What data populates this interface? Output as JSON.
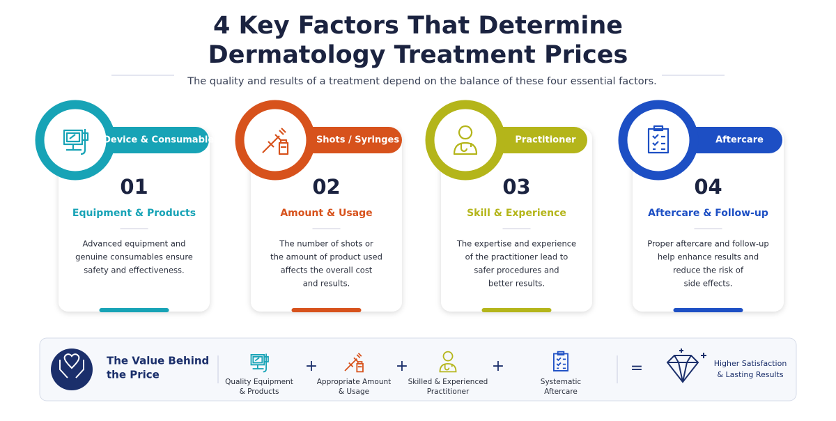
{
  "header": {
    "title_lines": [
      "4 Key Factors That Determine",
      "Dermatology Treatment Prices"
    ],
    "subtitle": "The quality and results of a treatment depend on the balance of these four essential factors."
  },
  "cards": [
    {
      "tag": "Device & Consumables",
      "number": "01",
      "heading": "Equipment & Products",
      "body": [
        "Advanced equipment and",
        "genuine consumables ensure",
        "safety and effectiveness."
      ]
    },
    {
      "tag": "Shots / Syringes",
      "number": "02",
      "heading": "Amount & Usage",
      "body": [
        "The number of shots or",
        "the amount of product used",
        "affects the overall cost",
        "and results."
      ]
    },
    {
      "tag": "Practitioner",
      "number": "03",
      "heading": "Skill & Experience",
      "body": [
        "The expertise and experience",
        "of the practitioner lead to",
        "safer procedures and",
        "better results."
      ]
    },
    {
      "tag": "Aftercare",
      "number": "04",
      "heading": "Aftercare & Follow-up",
      "body": [
        "Proper aftercare and follow-up",
        "help enhance results and",
        "reduce the risk of",
        "side effects."
      ]
    }
  ],
  "summary": {
    "title_lines": [
      "The Value Behind",
      "the Price"
    ],
    "items": [
      {
        "label": [
          "Quality Equipment",
          "& Products"
        ]
      },
      {
        "label": [
          "Appropriate Amount",
          "& Usage"
        ]
      },
      {
        "label": [
          "Skilled & Experienced",
          "Practitioner"
        ]
      },
      {
        "label": [
          "Systematic",
          "Aftercare"
        ]
      }
    ],
    "plus": "+",
    "equals": "=",
    "result": [
      "Higher Satisfaction",
      "& Lasting Results"
    ]
  }
}
